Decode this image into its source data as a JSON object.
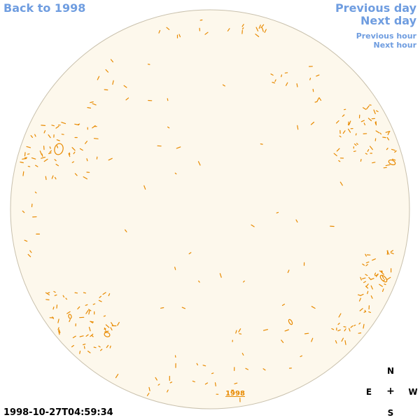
{
  "navigation": {
    "back_label": "Back to 1998",
    "previous_day_label": "Previous day",
    "next_day_label": "Next day",
    "previous_hour_label": "Previous hour",
    "next_hour_label": "Next hour"
  },
  "disk": {
    "fill_color": "#fdf8ec",
    "edge_color": "#c9c1ad",
    "contour_color": "#e88a00",
    "year_label": "1998"
  },
  "timestamp": "1998-10-27T04:59:34",
  "compass": {
    "north": "N",
    "east": "E",
    "center": "+",
    "west": "W",
    "south": "S"
  }
}
